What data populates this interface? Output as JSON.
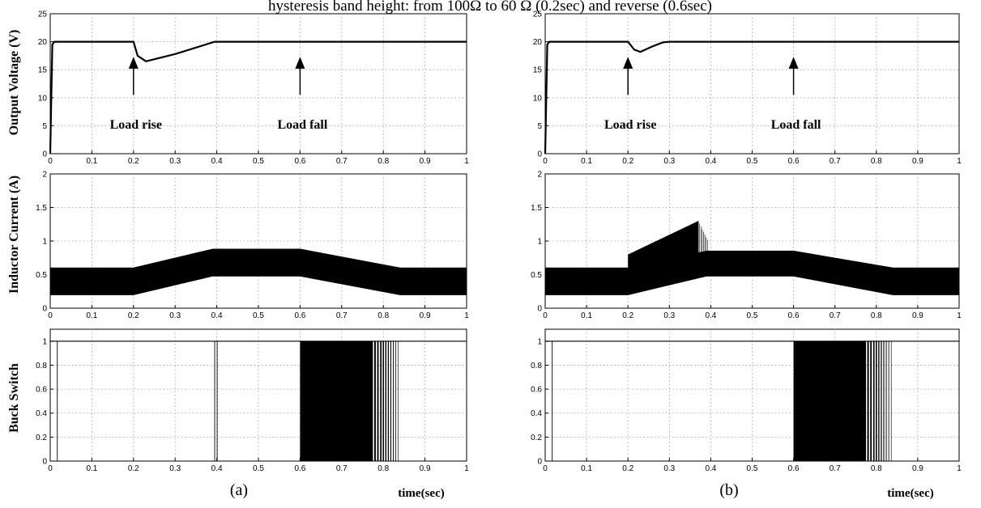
{
  "figure": {
    "title": "hysteresis band height: from 100Ω to 60 Ω (0.2sec) and reverse (0.6sec)",
    "captions": [
      "(a)",
      "(b)"
    ],
    "ylabels": [
      "Output Voltage (V)",
      "Inductor Current (A)",
      "Buck Switch"
    ],
    "xlabel": "time(sec)",
    "annotations": [
      "Load rise",
      "Load fall"
    ]
  },
  "chart_data": [
    {
      "type": "line",
      "panel": "a",
      "row": "voltage",
      "xlim": [
        0,
        1
      ],
      "ylim": [
        0,
        25
      ],
      "grid": true,
      "xticks": [
        0,
        0.1,
        0.2,
        0.3,
        0.4,
        0.5,
        0.6,
        0.7,
        0.8,
        0.9,
        1
      ],
      "yticks": [
        0,
        5,
        10,
        15,
        20,
        25
      ],
      "series": [
        {
          "x": [
            0,
            0.005,
            0.01,
            0.2,
            0.21,
            0.23,
            0.3,
            0.395,
            0.4,
            1
          ],
          "y": [
            0,
            19.5,
            20,
            20,
            17.5,
            16.5,
            17.8,
            20,
            20,
            20
          ]
        }
      ],
      "annotations": [
        {
          "text": "Load rise",
          "x": 0.2
        },
        {
          "text": "Load fall",
          "x": 0.6
        }
      ]
    },
    {
      "type": "area",
      "panel": "a",
      "row": "current",
      "xlim": [
        0,
        1
      ],
      "ylim": [
        0,
        2
      ],
      "grid": true,
      "xticks": [
        0,
        0.1,
        0.2,
        0.3,
        0.4,
        0.5,
        0.6,
        0.7,
        0.8,
        0.9,
        1
      ],
      "yticks": [
        0,
        0.5,
        1,
        1.5,
        2
      ],
      "x": [
        0,
        0.2,
        0.39,
        0.6,
        0.84,
        1
      ],
      "upper": [
        0.6,
        0.6,
        0.88,
        0.88,
        0.6,
        0.6
      ],
      "lower": [
        0.2,
        0.2,
        0.48,
        0.48,
        0.2,
        0.2
      ]
    },
    {
      "type": "line",
      "panel": "a",
      "row": "switch",
      "xlim": [
        0,
        1
      ],
      "ylim": [
        0,
        1.1
      ],
      "grid": true,
      "xticks": [
        0,
        0.1,
        0.2,
        0.3,
        0.4,
        0.5,
        0.6,
        0.7,
        0.8,
        0.9,
        1
      ],
      "yticks": [
        0,
        0.2,
        0.4,
        0.6,
        0.8,
        1
      ],
      "level": 1,
      "pulses": [
        0.017,
        0.395,
        0.401
      ],
      "dense_band": [
        0.6,
        0.775
      ],
      "sparse_pulses": [
        0.78,
        0.787,
        0.794,
        0.8,
        0.806,
        0.812,
        0.818,
        0.824,
        0.83,
        0.836
      ]
    },
    {
      "type": "line",
      "panel": "b",
      "row": "voltage",
      "xlim": [
        0,
        1
      ],
      "ylim": [
        0,
        25
      ],
      "grid": true,
      "xticks": [
        0,
        0.1,
        0.2,
        0.3,
        0.4,
        0.5,
        0.6,
        0.7,
        0.8,
        0.9,
        1
      ],
      "yticks": [
        0,
        5,
        10,
        15,
        20,
        25
      ],
      "series": [
        {
          "x": [
            0,
            0.005,
            0.01,
            0.2,
            0.215,
            0.23,
            0.26,
            0.285,
            0.3,
            1
          ],
          "y": [
            0,
            19.5,
            20,
            20,
            18.6,
            18.2,
            19.2,
            19.9,
            20,
            20
          ]
        }
      ],
      "annotations": [
        {
          "text": "Load rise",
          "x": 0.2
        },
        {
          "text": "Load fall",
          "x": 0.6
        }
      ]
    },
    {
      "type": "area",
      "panel": "b",
      "row": "current",
      "xlim": [
        0,
        1
      ],
      "ylim": [
        0,
        2
      ],
      "grid": true,
      "xticks": [
        0,
        0.1,
        0.2,
        0.3,
        0.4,
        0.5,
        0.6,
        0.7,
        0.8,
        0.9,
        1
      ],
      "yticks": [
        0,
        0.5,
        1,
        1.5,
        2
      ],
      "x": [
        0,
        0.2,
        0.39,
        0.6,
        0.84,
        1
      ],
      "upper": [
        0.6,
        0.6,
        0.85,
        0.85,
        0.6,
        0.6
      ],
      "lower": [
        0.2,
        0.2,
        0.48,
        0.48,
        0.2,
        0.2
      ],
      "spike_region": {
        "x": [
          0.2,
          0.37
        ],
        "upper": [
          0.8,
          1.3
        ]
      }
    },
    {
      "type": "line",
      "panel": "b",
      "row": "switch",
      "xlim": [
        0,
        1
      ],
      "ylim": [
        0,
        1.1
      ],
      "grid": true,
      "xticks": [
        0,
        0.1,
        0.2,
        0.3,
        0.4,
        0.5,
        0.6,
        0.7,
        0.8,
        0.9,
        1
      ],
      "yticks": [
        0,
        0.2,
        0.4,
        0.6,
        0.8,
        1
      ],
      "level": 1,
      "pulses": [
        0.017
      ],
      "dense_band": [
        0.6,
        0.775
      ],
      "sparse_pulses": [
        0.78,
        0.787,
        0.794,
        0.8,
        0.806,
        0.812,
        0.818,
        0.824,
        0.83,
        0.836
      ]
    }
  ]
}
